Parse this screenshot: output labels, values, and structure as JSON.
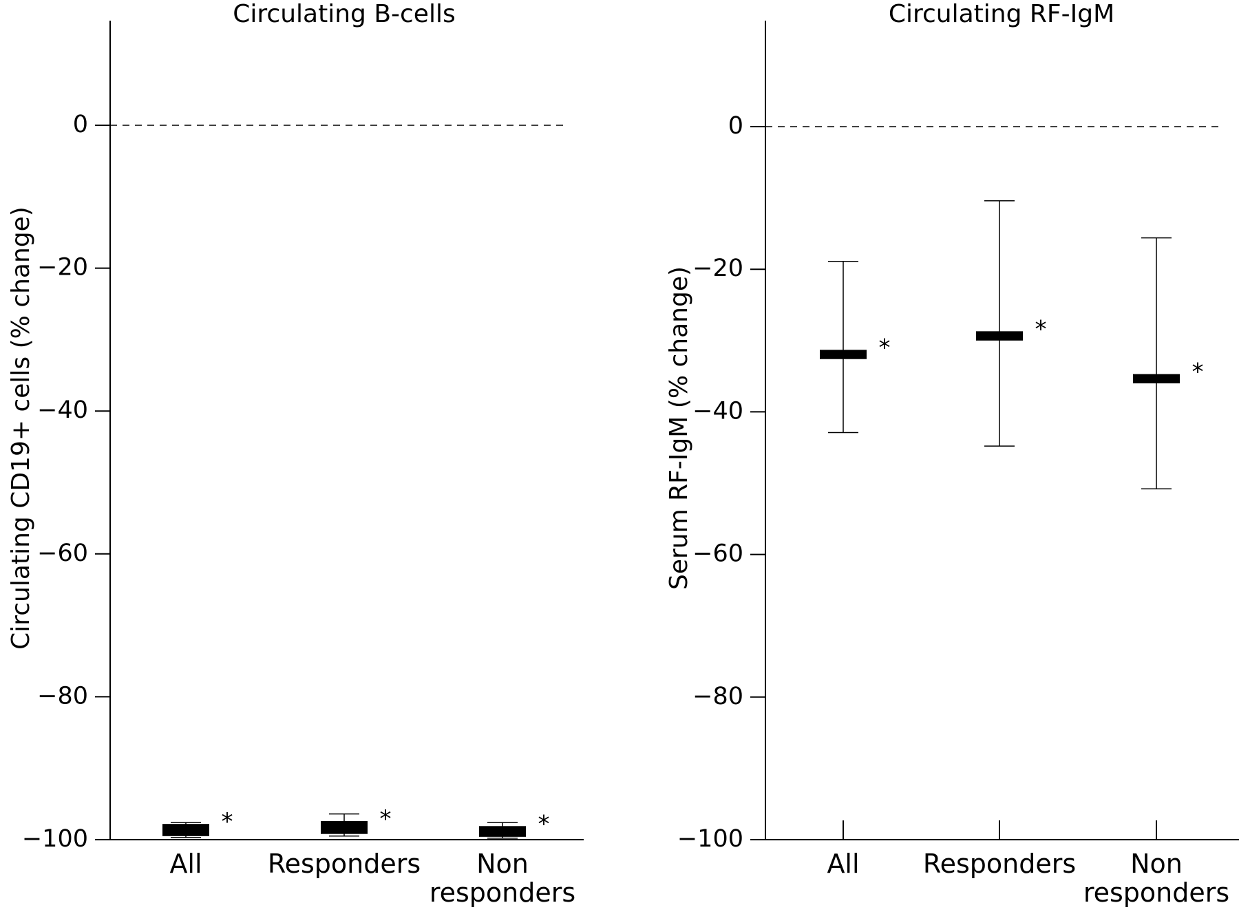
{
  "chart_data": [
    {
      "type": "box",
      "title": "Circulating B-cells",
      "ylabel": "Circulating CD19+ cells (% change)",
      "xlabel": "",
      "ylim": [
        -100,
        14
      ],
      "yticks": [
        0,
        -20,
        -40,
        -60,
        -80,
        -100
      ],
      "ytick_labels": [
        "0",
        "−20",
        "−40",
        "−60",
        "−80",
        "−100"
      ],
      "reference_line": 0,
      "categories": [
        {
          "lines": [
            "All"
          ]
        },
        {
          "lines": [
            "Responders"
          ]
        },
        {
          "lines": [
            "Non",
            "responders"
          ]
        }
      ],
      "series": [
        {
          "values": [
            {
              "median": -98.6,
              "q1": -99.5,
              "q3": -97.8,
              "whisker_low": -99.7,
              "whisker_high": -97.6,
              "significance": "*"
            },
            {
              "median": -98.3,
              "q1": -99.2,
              "q3": -97.4,
              "whisker_low": -99.5,
              "whisker_high": -96.4,
              "significance": "*"
            },
            {
              "median": -98.9,
              "q1": -99.6,
              "q3": -98.1,
              "whisker_low": -99.8,
              "whisker_high": -97.6,
              "significance": "*"
            }
          ]
        }
      ],
      "grid": false,
      "color": "#000000"
    },
    {
      "type": "box",
      "title": "Circulating RF-IgM",
      "ylabel": "Serum RF-IgM (% change)",
      "xlabel": "",
      "ylim": [
        -100,
        15
      ],
      "yticks": [
        0,
        -20,
        -40,
        -60,
        -80,
        -100
      ],
      "ytick_labels": [
        "0",
        "−20",
        "−40",
        "−60",
        "−80",
        "−100"
      ],
      "reference_line": 0,
      "categories": [
        {
          "lines": [
            "All"
          ]
        },
        {
          "lines": [
            "Responders"
          ]
        },
        {
          "lines": [
            "Non",
            "responders"
          ]
        }
      ],
      "series": [
        {
          "values": [
            {
              "median": -32.0,
              "q1": -32.6,
              "q3": -31.3,
              "whisker_low": -42.9,
              "whisker_high": -18.9,
              "significance": "*"
            },
            {
              "median": -29.4,
              "q1": -30.0,
              "q3": -28.7,
              "whisker_low": -44.8,
              "whisker_high": -10.4,
              "significance": "*"
            },
            {
              "median": -35.4,
              "q1": -36.0,
              "q3": -34.7,
              "whisker_low": -50.8,
              "whisker_high": -15.6,
              "significance": "*"
            }
          ]
        }
      ],
      "grid": false,
      "color": "#000000"
    }
  ]
}
